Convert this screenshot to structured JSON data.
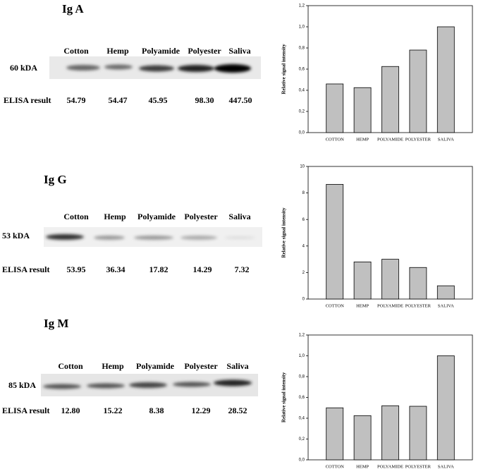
{
  "panels": [
    {
      "title": "Ig A",
      "lanes": [
        "Cotton",
        "Hemp",
        "Polyamide",
        "Polyester",
        "Saliva"
      ],
      "marker": "60 kDA",
      "elisa_label": "ELISA result",
      "elisa": [
        "54.79",
        "54.47",
        "45.95",
        "98.30",
        "447.50"
      ]
    },
    {
      "title": "Ig G",
      "lanes": [
        "Cotton",
        "Hemp",
        "Polyamide",
        "Polyester",
        "Saliva"
      ],
      "marker": "53 kDA",
      "elisa_label": "ELISA result",
      "elisa": [
        "53.95",
        "36.34",
        "17.82",
        "14.29",
        "7.32"
      ]
    },
    {
      "title": "Ig M",
      "lanes": [
        "Cotton",
        "Hemp",
        "Polyamide",
        "Polyester",
        "Saliva"
      ],
      "marker": "85 kDA",
      "elisa_label": "ELISA result",
      "elisa": [
        "12.80",
        "15.22",
        "8.38",
        "12.29",
        "28.52"
      ]
    }
  ],
  "chart_data": [
    {
      "type": "bar",
      "categories": [
        "COTTON",
        "HEMP",
        "POLYAMIDE",
        "POLYESTER",
        "SALIVA"
      ],
      "values": [
        0.46,
        0.425,
        0.625,
        0.78,
        1.0
      ],
      "ylabel": "Relative signal intensity",
      "color": "#c0c0c0",
      "ylim": [
        0,
        1.2
      ],
      "yticks": [
        {
          "value": 0,
          "label": "0,0"
        },
        {
          "value": 0.2,
          "label": "0,2"
        },
        {
          "value": 0.4,
          "label": "0,4"
        },
        {
          "value": 0.6,
          "label": "0,6"
        },
        {
          "value": 0.8,
          "label": "0,8"
        },
        {
          "value": 1.0,
          "label": "1,0"
        },
        {
          "value": 1.2,
          "label": "1,2"
        }
      ]
    },
    {
      "type": "bar",
      "categories": [
        "COTTON",
        "HEMP",
        "POLYAMIDE",
        "POLYESTER",
        "SALIVA"
      ],
      "values": [
        8.65,
        2.8,
        3.0,
        2.38,
        1.0
      ],
      "ylabel": "Relative signal intensity",
      "color": "#c0c0c0",
      "ylim": [
        0,
        10
      ],
      "yticks": [
        0,
        2,
        4,
        6,
        8,
        10
      ]
    },
    {
      "type": "bar",
      "categories": [
        "COTTON",
        "HEMP",
        "POLYAMIDE",
        "POLYESTER",
        "SALIVA"
      ],
      "values": [
        0.5,
        0.425,
        0.52,
        0.515,
        1.0
      ],
      "ylabel": "Relative signal intensity",
      "color": "#c0c0c0",
      "ylim": [
        0,
        1.2
      ],
      "yticks": [
        {
          "value": 0,
          "label": "0,0"
        },
        {
          "value": 0.2,
          "label": "0,2"
        },
        {
          "value": 0.4,
          "label": "0,4"
        },
        {
          "value": 0.6,
          "label": "0,6"
        },
        {
          "value": 0.8,
          "label": "0,8"
        },
        {
          "value": 1.0,
          "label": "1,0"
        },
        {
          "value": 1.2,
          "label": "1,2"
        }
      ]
    }
  ]
}
